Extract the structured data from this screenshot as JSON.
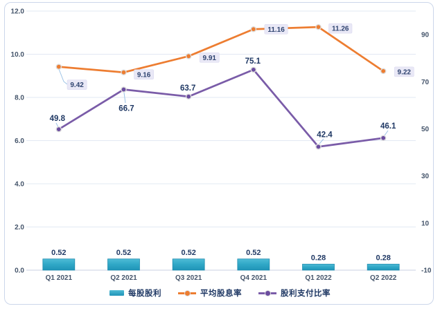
{
  "chart_data": {
    "type": "combo",
    "title": "",
    "categories": [
      "Q1 2021",
      "Q2 2021",
      "Q3 2021",
      "Q4 2021",
      "Q1 2022",
      "Q2 2022"
    ],
    "series": [
      {
        "name": "每股股利",
        "kind": "bar",
        "axis": "left",
        "values": [
          0.52,
          0.52,
          0.52,
          0.52,
          0.28,
          0.28
        ],
        "data_labels": [
          "0.52",
          "0.52",
          "0.52",
          "0.52",
          "0.28",
          "0.28"
        ],
        "colors": {
          "top": "#4FBBD6",
          "mid": "#2FA7C6",
          "bottom": "#1F94B7",
          "stroke": "#1B89AC"
        }
      },
      {
        "name": "平均股息率",
        "kind": "line",
        "axis": "left",
        "color": "#ED7D31",
        "values": [
          9.42,
          9.16,
          9.91,
          11.16,
          11.26,
          9.22
        ],
        "data_labels": [
          "9.42",
          "9.16",
          "9.91",
          "11.16",
          "11.26",
          "9.22"
        ],
        "label_style": "boxed",
        "label_offsets": [
          {
            "dx": 28,
            "dy": 26,
            "leader": [
              [
                85,
                100
              ],
              [
                92,
                118
              ],
              [
                97,
                122
              ]
            ]
          },
          {
            "dx": 17,
            "dy": 3,
            "leader": null
          },
          {
            "dx": 18,
            "dy": 2,
            "leader": null
          },
          {
            "dx": 18,
            "dy": 0,
            "leader": null
          },
          {
            "dx": 17,
            "dy": 2,
            "leader": null
          },
          {
            "dx": 18,
            "dy": 1,
            "leader": null
          }
        ]
      },
      {
        "name": "股利支付比率",
        "kind": "line",
        "axis": "right",
        "color": "#7A5CA8",
        "marker_color": "#6B4C9F",
        "values": [
          49.8,
          66.7,
          63.7,
          75.1,
          42.4,
          46.1
        ],
        "data_labels": [
          "49.8",
          "66.7",
          "63.7",
          "75.1",
          "42.4",
          "46.1"
        ],
        "label_style": "plain",
        "label_offsets": [
          {
            "dx": -2,
            "dy": -12,
            "leader": [
              [
                84,
                184
              ],
              [
                81,
                178
              ]
            ]
          },
          {
            "dx": 4,
            "dy": 31,
            "leader": [
              [
                179,
                134
              ],
              [
                181,
                149
              ]
            ]
          },
          {
            "dx": -1,
            "dy": -9,
            "leader": null
          },
          {
            "dx": -1,
            "dy": -9,
            "leader": null
          },
          {
            "dx": 9,
            "dy": -14,
            "leader": [
              [
                461,
                208
              ],
              [
                467,
                201
              ]
            ]
          },
          {
            "dx": 7,
            "dy": -14,
            "leader": [
              [
                555,
                196
              ],
              [
                560,
                189
              ]
            ]
          }
        ]
      }
    ],
    "left_axis": {
      "min": 0,
      "max": 12,
      "tick_step": 2,
      "tick_labels": [
        "0.0",
        "2.0",
        "4.0",
        "6.0",
        "8.0",
        "10.0",
        "12.0"
      ]
    },
    "right_axis": {
      "min": -10,
      "max": 100,
      "tick_start": -10,
      "tick_step": 20,
      "tick_labels": [
        "-10",
        "10",
        "30",
        "50",
        "70",
        "90"
      ]
    },
    "grid": "horizontal",
    "legend_position": "bottom"
  },
  "colors": {
    "text_dark": "#1F3864",
    "text_axis": "#44546A",
    "gridline": "#E2E8F3",
    "baseline": "#C9D2E0",
    "leader": "#9DC3E6",
    "callout_bg": "#E9E8F6",
    "callout_border": "#D8D6EE",
    "callout_text": "#2F4470",
    "marker_ring": "#DCDCDC",
    "frame_border": "#CBD6EA"
  }
}
